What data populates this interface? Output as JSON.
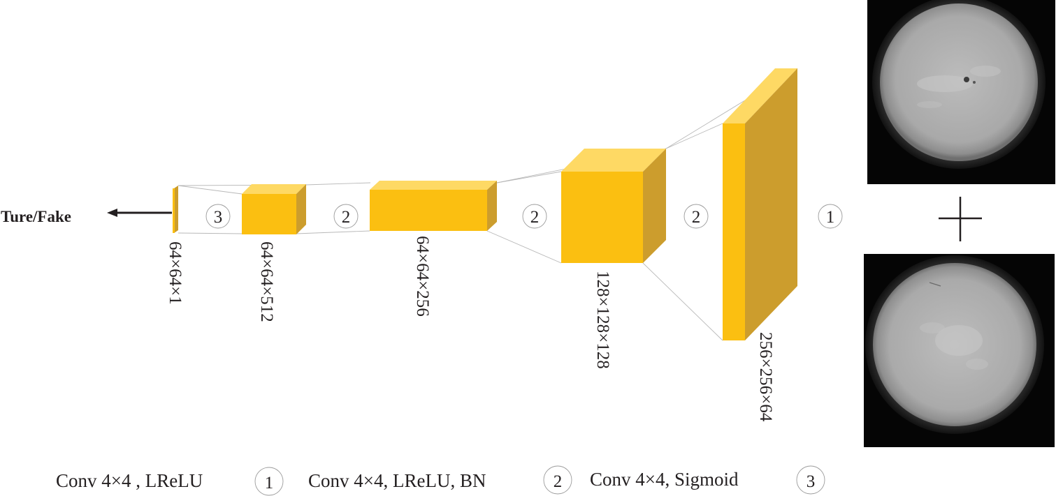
{
  "diagram": {
    "output_label": "Ture/Fake",
    "layers": [
      {
        "dims": "64×64×1"
      },
      {
        "dims": "64×64×512"
      },
      {
        "dims": "64×64×256"
      },
      {
        "dims": "128×128×128"
      },
      {
        "dims": "256×256×64"
      }
    ],
    "ops": [
      "3",
      "2",
      "2",
      "2",
      "1"
    ],
    "plus_symbol": "+",
    "legend": [
      {
        "text": "Conv 4×4 , LReLU",
        "num": "1"
      },
      {
        "text": "Conv 4×4, LReLU, BN",
        "num": "2"
      },
      {
        "text": "Conv 4×4, Sigmoid",
        "num": "3"
      }
    ],
    "colors": {
      "block_front": "#fbbf11",
      "block_top": "#fed964",
      "block_side": "#cc9d2d"
    }
  }
}
